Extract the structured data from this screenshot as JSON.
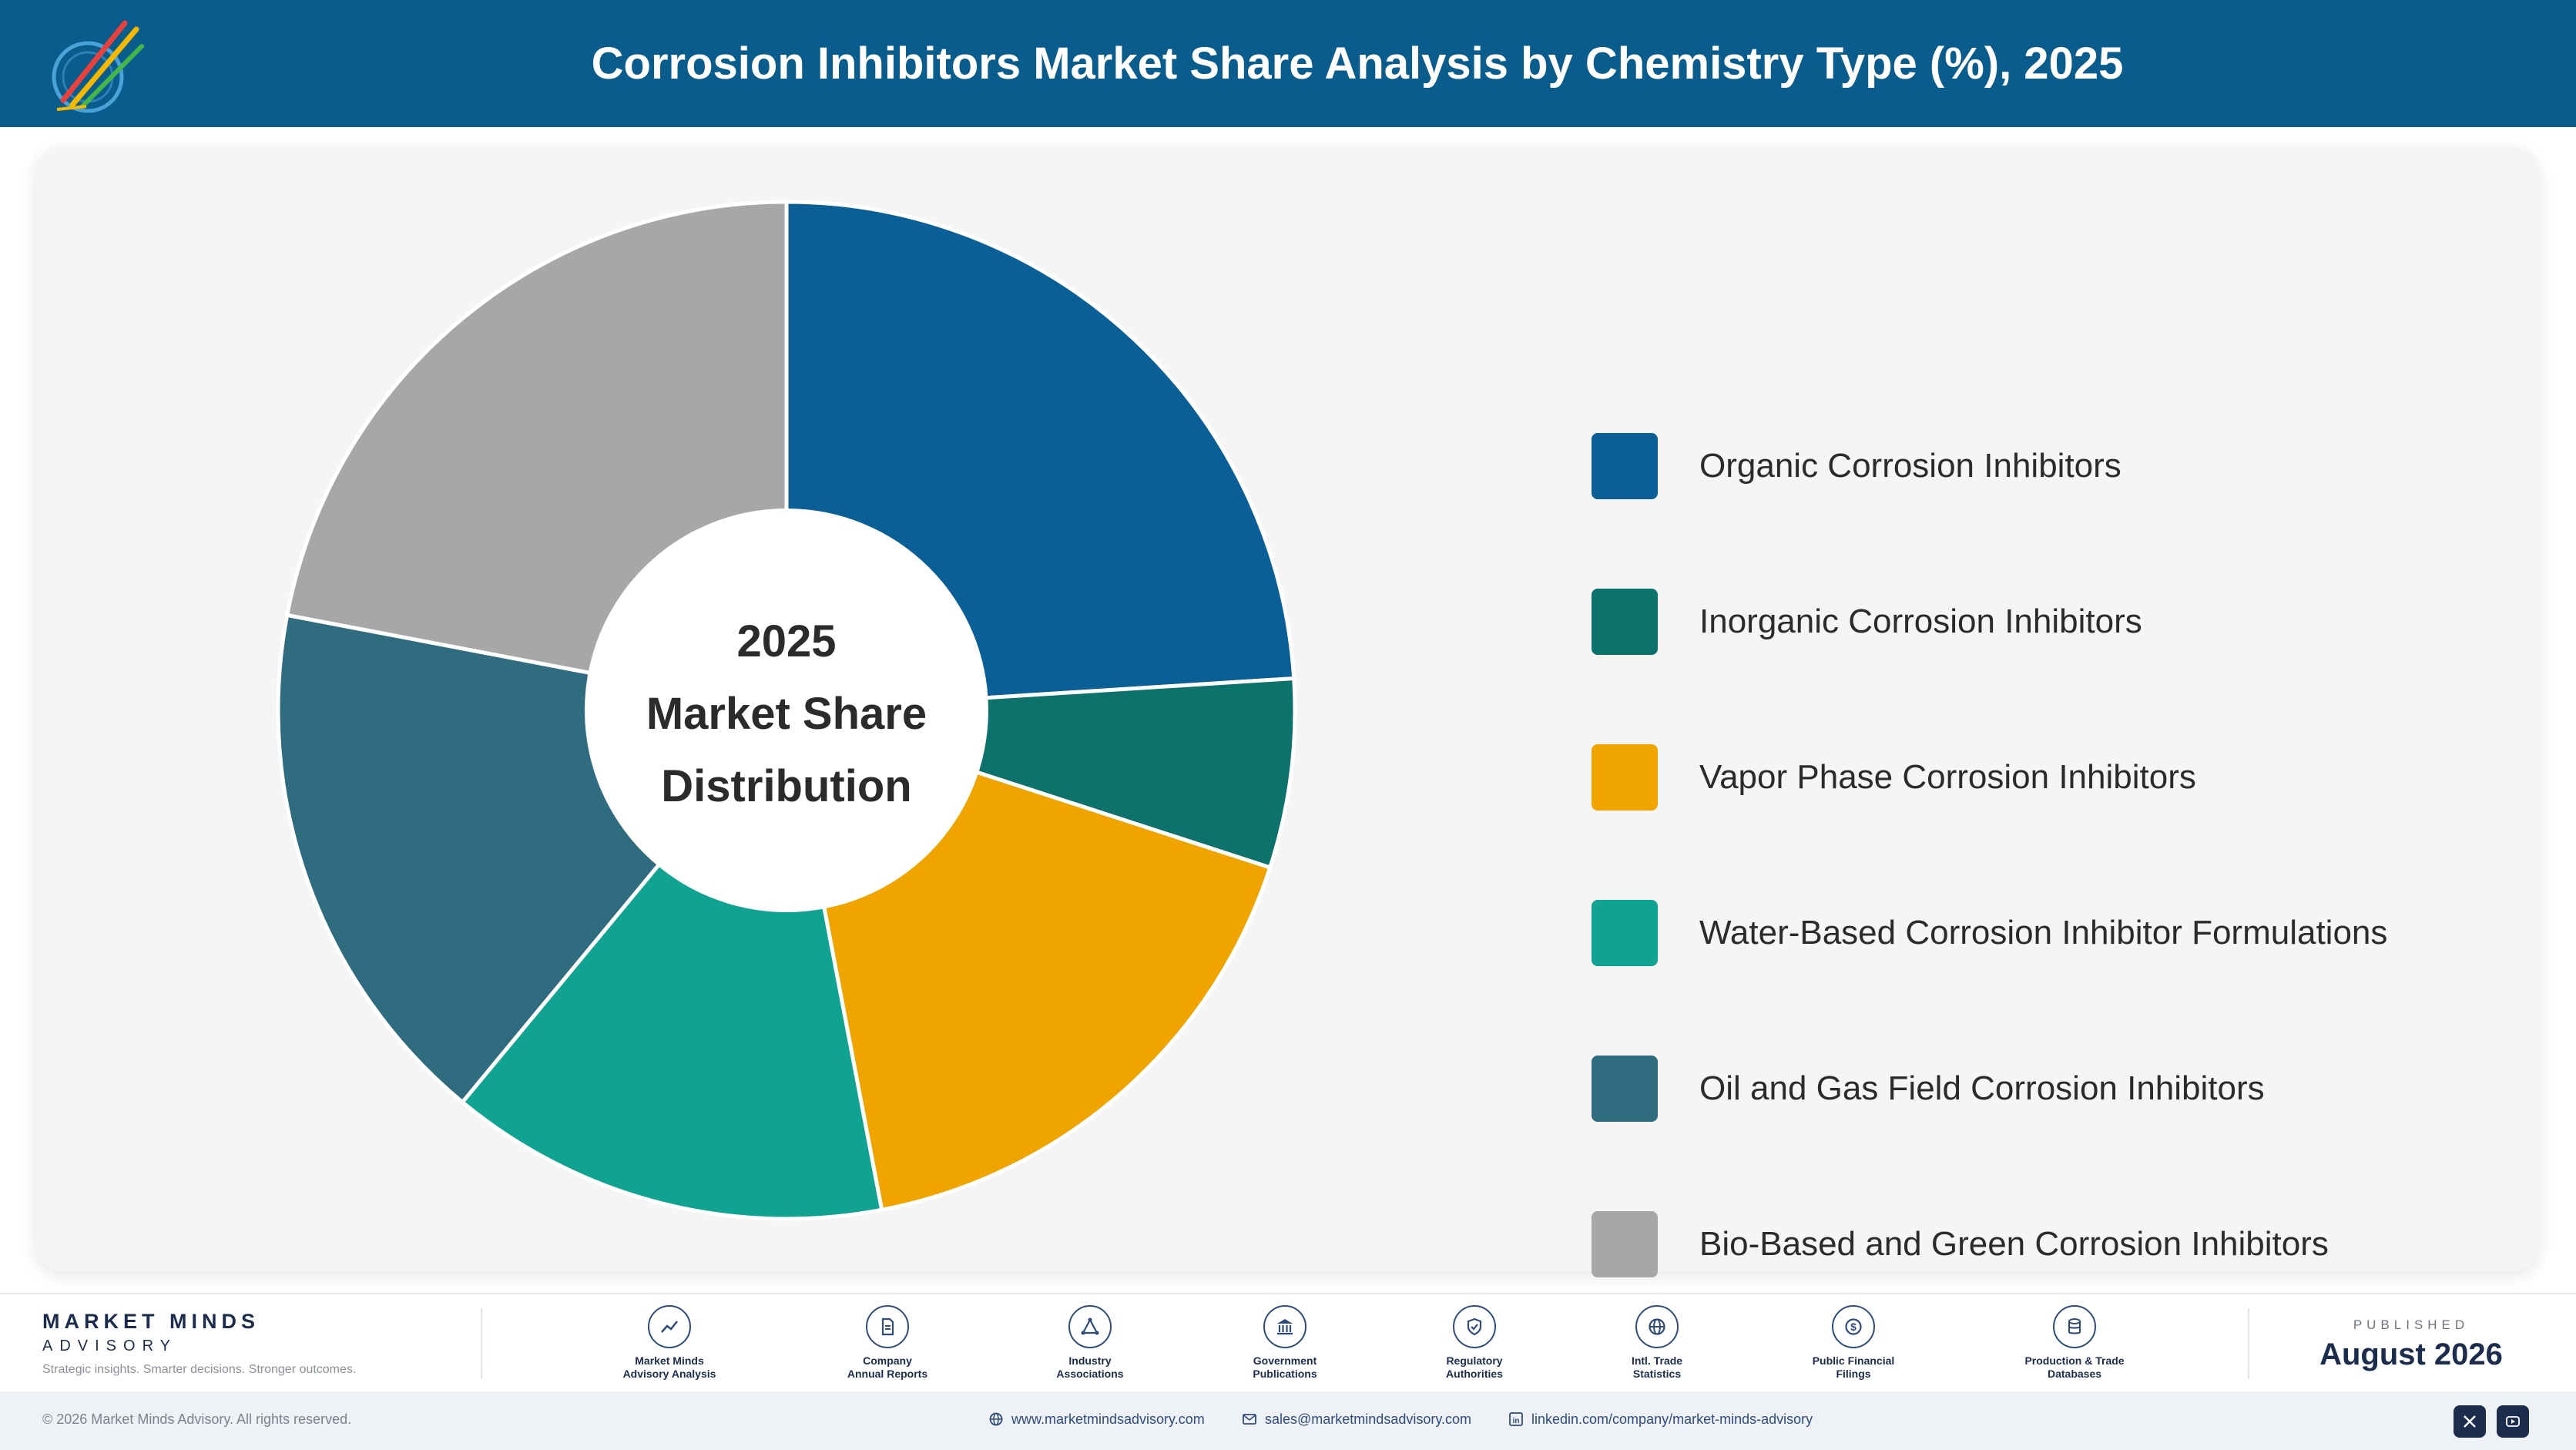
{
  "header": {
    "title": "Corrosion Inhibitors Market Share Analysis by Chemistry Type (%), 2025",
    "bg_color": "#0a5c8c"
  },
  "chart_data": {
    "type": "pie",
    "title": "Corrosion Inhibitors Market Share Analysis by Chemistry Type (%), 2025",
    "center_label": [
      "2025",
      "Market Share",
      "Distribution"
    ],
    "legend_position": "right",
    "categories": [
      "Organic Corrosion Inhibitors",
      "Inorganic Corrosion Inhibitors",
      "Vapor Phase Corrosion Inhibitors",
      "Water-Based Corrosion Inhibitor Formulations",
      "Oil and Gas Field Corrosion Inhibitors",
      "Bio-Based and Green Corrosion Inhibitors"
    ],
    "values": [
      24,
      6,
      17,
      14,
      17,
      22
    ],
    "colors": [
      "#0a5f96",
      "#0d726b",
      "#f0a400",
      "#11a392",
      "#2f6c80",
      "#a7a7a7"
    ]
  },
  "footer": {
    "brand_name": "MARKET MINDS",
    "brand_sub": "ADVISORY",
    "tagline": "Strategic insights. Smarter decisions. Stronger outcomes.",
    "sources": [
      {
        "line1": "Market Minds",
        "line2": "Advisory Analysis",
        "icon": "chart-line-icon"
      },
      {
        "line1": "Company",
        "line2": "Annual Reports",
        "icon": "document-icon"
      },
      {
        "line1": "Industry",
        "line2": "Associations",
        "icon": "network-icon"
      },
      {
        "line1": "Government",
        "line2": "Publications",
        "icon": "building-icon"
      },
      {
        "line1": "Regulatory",
        "line2": "Authorities",
        "icon": "shield-icon"
      },
      {
        "line1": "Intl. Trade",
        "line2": "Statistics",
        "icon": "globe-icon"
      },
      {
        "line1": "Public Financial",
        "line2": "Filings",
        "icon": "dollar-icon"
      },
      {
        "line1": "Production & Trade",
        "line2": "Databases",
        "icon": "database-icon"
      }
    ],
    "published_label": "PUBLISHED",
    "published_date": "August 2026",
    "copyright": "© 2026 Market Minds Advisory. All rights reserved.",
    "website": "www.marketmindsadvisory.com",
    "email": "sales@marketmindsadvisory.com",
    "linkedin": "linkedin.com/company/market-minds-advisory"
  }
}
